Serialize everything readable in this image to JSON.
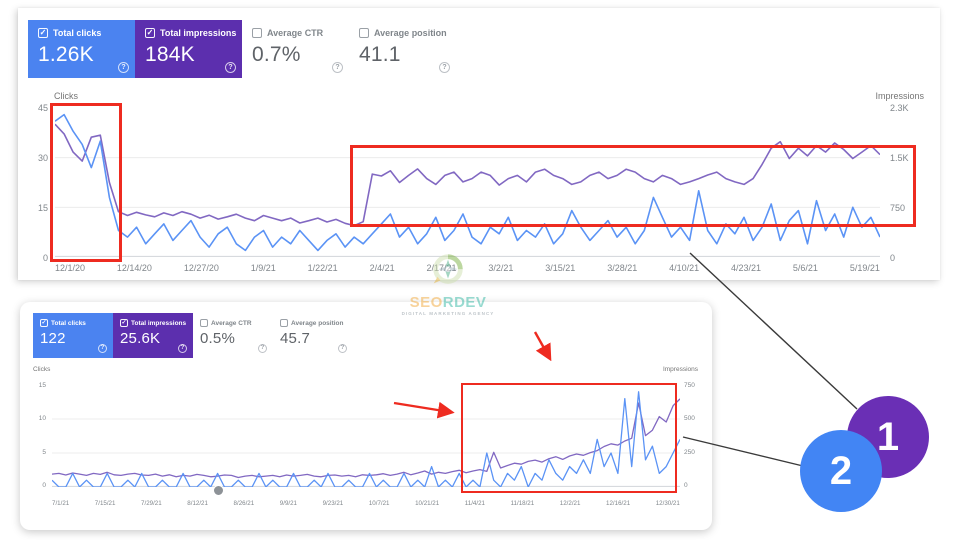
{
  "colors": {
    "clicks_blue": "#4b83f0",
    "impressions_purple": "#5c2fae",
    "line_blue": "#5b93f5",
    "line_purple": "#8168c2",
    "annotation_red": "#ee2b20",
    "connector_black": "#3a3a3a",
    "badge1_purple": "#6a2fb5",
    "badge2_blue": "#4285f4"
  },
  "panel1": {
    "cards": [
      {
        "label": "Total clicks",
        "value": "1.26K",
        "checked": true
      },
      {
        "label": "Total impressions",
        "value": "184K",
        "checked": true
      },
      {
        "label": "Average CTR",
        "value": "0.7%",
        "checked": false
      },
      {
        "label": "Average position",
        "value": "41.1",
        "checked": false
      }
    ],
    "help_glyph": "?"
  },
  "panel2": {
    "cards": [
      {
        "label": "Total clicks",
        "value": "122",
        "checked": true
      },
      {
        "label": "Total impressions",
        "value": "25.6K",
        "checked": true
      },
      {
        "label": "Average CTR",
        "value": "0.5%",
        "checked": false
      },
      {
        "label": "Average position",
        "value": "45.7",
        "checked": false
      }
    ],
    "help_glyph": "?"
  },
  "chart_data": [
    {
      "type": "line",
      "left_axis": {
        "title": "Clicks",
        "ticks": [
          "45",
          "30",
          "15",
          "0"
        ],
        "max": 45
      },
      "right_axis": {
        "title": "Impressions",
        "ticks": [
          "2.3K",
          "1.5K",
          "750",
          "0"
        ],
        "max": 2300
      },
      "x_labels": [
        "12/1/20",
        "12/14/20",
        "12/27/20",
        "1/9/21",
        "1/22/21",
        "2/4/21",
        "2/17/21",
        "3/2/21",
        "3/15/21",
        "3/28/21",
        "4/10/21",
        "4/23/21",
        "5/6/21",
        "5/19/21"
      ],
      "grid": true,
      "legend_position": "none",
      "stroke_width": 1.6,
      "series": [
        {
          "name": "Total impressions",
          "axis": "right",
          "axis_max": 2300,
          "color": "#8168c2",
          "values": [
            2050,
            1900,
            1620,
            1480,
            1850,
            1880,
            1150,
            700,
            640,
            690,
            650,
            620,
            680,
            640,
            700,
            660,
            600,
            645,
            585,
            620,
            660,
            600,
            560,
            640,
            600,
            560,
            600,
            525,
            560,
            600,
            540,
            580,
            520,
            485,
            545,
            1280,
            1250,
            1330,
            1150,
            1260,
            1360,
            1210,
            1120,
            1260,
            1310,
            1160,
            1210,
            1310,
            1260,
            1110,
            1210,
            1260,
            1160,
            1310,
            1355,
            1260,
            1210,
            1120,
            1160,
            1260,
            1310,
            1210,
            1260,
            1355,
            1310,
            1210,
            1160,
            1260,
            1210,
            1120,
            1160,
            1210,
            1265,
            1310,
            1210,
            1160,
            1120,
            1210,
            1430,
            1680,
            1780,
            1520,
            1680,
            1560,
            1720,
            1620,
            1760,
            1660,
            1520,
            1620,
            1720,
            1580
          ]
        },
        {
          "name": "Total clicks",
          "axis": "left",
          "axis_max": 45,
          "color": "#5b93f5",
          "values": [
            41,
            43,
            38,
            34,
            27,
            35,
            18,
            8,
            6,
            9,
            4,
            7,
            10,
            5,
            8,
            11,
            6,
            3,
            7,
            9,
            4,
            2,
            6,
            8,
            3,
            6,
            4,
            8,
            5,
            2,
            5,
            7,
            3,
            6,
            4,
            7,
            10,
            13,
            6,
            9,
            4,
            7,
            12,
            5,
            8,
            13,
            6,
            4,
            9,
            7,
            12,
            5,
            8,
            6,
            10,
            4,
            7,
            14,
            9,
            5,
            8,
            11,
            6,
            9,
            4,
            8,
            18,
            12,
            6,
            9,
            5,
            20,
            8,
            4,
            10,
            7,
            12,
            5,
            9,
            16,
            5,
            11,
            14,
            4,
            17,
            8,
            13,
            6,
            15,
            9,
            12,
            6
          ]
        }
      ]
    },
    {
      "type": "line",
      "left_axis": {
        "title": "Clicks",
        "ticks": [
          "15",
          "10",
          "5",
          "0"
        ],
        "max": 15
      },
      "right_axis": {
        "title": "Impressions",
        "ticks": [
          "750",
          "500",
          "250",
          "0"
        ],
        "max": 750
      },
      "x_labels": [
        "7/1/21",
        "7/15/21",
        "7/29/21",
        "8/12/21",
        "8/26/21",
        "9/9/21",
        "9/23/21",
        "10/7/21",
        "10/21/21",
        "11/4/21",
        "11/18/21",
        "12/2/21",
        "12/16/21",
        "12/30/21"
      ],
      "grid": true,
      "legend_position": "none",
      "stroke_width": 1.3,
      "axis_marker": true,
      "series": [
        {
          "name": "Total impressions",
          "axis": "right",
          "axis_max": 750,
          "color": "#8168c2",
          "values": [
            95,
            100,
            88,
            103,
            95,
            85,
            100,
            93,
            108,
            90,
            85,
            95,
            100,
            88,
            85,
            95,
            80,
            90,
            75,
            85,
            80,
            93,
            85,
            75,
            80,
            88,
            85,
            70,
            80,
            85,
            75,
            80,
            85,
            75,
            88,
            80,
            85,
            93,
            80,
            75,
            85,
            88,
            80,
            85,
            75,
            90,
            85,
            90,
            98,
            85,
            95,
            108,
            90,
            103,
            118,
            95,
            108,
            100,
            113,
            123,
            105,
            118,
            128,
            115,
            255,
            140,
            158,
            175,
            168,
            188,
            198,
            183,
            208,
            223,
            203,
            228,
            243,
            233,
            253,
            268,
            298,
            318,
            308,
            338,
            358,
            618,
            378,
            418,
            518,
            478,
            598,
            648
          ]
        },
        {
          "name": "Total clicks",
          "axis": "left",
          "axis_max": 15,
          "color": "#5b93f5",
          "values": [
            1,
            0,
            0,
            2,
            0,
            1,
            0,
            0,
            2,
            0,
            0,
            1,
            0,
            2,
            0,
            0,
            1,
            0,
            0,
            2,
            0,
            0,
            1,
            0,
            2,
            0,
            0,
            1,
            0,
            0,
            2,
            0,
            1,
            0,
            0,
            2,
            0,
            0,
            1,
            0,
            2,
            0,
            0,
            1,
            0,
            0,
            2,
            0,
            1,
            0,
            0,
            2,
            0,
            1,
            0,
            3,
            0,
            1,
            0,
            2,
            0,
            1,
            0,
            5,
            1,
            0,
            2,
            1,
            3,
            0,
            2,
            1,
            4,
            2,
            1,
            3,
            2,
            4,
            2,
            7,
            3,
            5,
            2,
            13,
            3,
            14,
            4,
            6,
            2,
            3,
            5,
            7
          ]
        }
      ]
    }
  ],
  "annotations": {
    "badge1": {
      "number": "1"
    },
    "badge2": {
      "number": "2"
    }
  },
  "watermark": {
    "brand_seo": "SEO",
    "brand_rest": "RDEV",
    "tagline": "DIGITAL MARKETING AGENCY"
  }
}
